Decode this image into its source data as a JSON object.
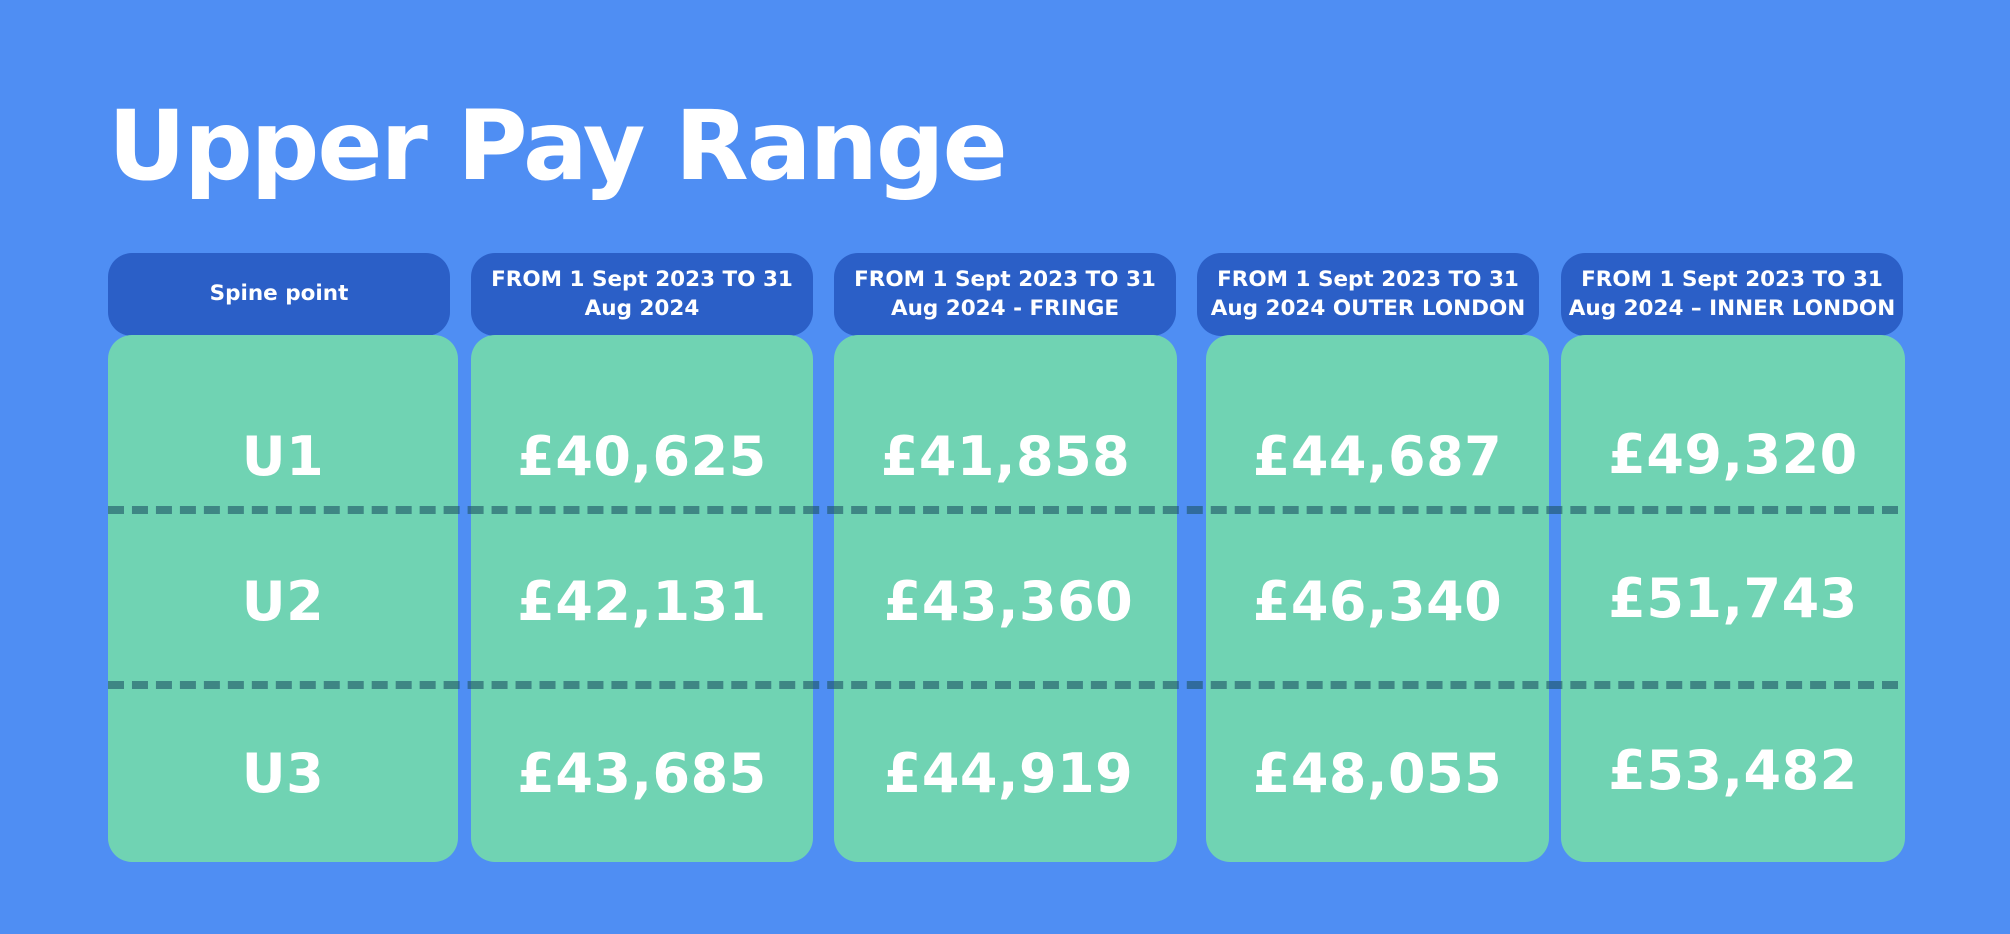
{
  "title": "Upper Pay Range",
  "headers": [
    "Spine point",
    "FROM 1 Sept 2023 TO 31 Aug 2024",
    "FROM 1 Sept 2023 TO 31 Aug 2024 - FRINGE",
    "FROM 1 Sept 2023 TO 31 Aug 2024 OUTER LONDON",
    "FROM 1 Sept 2023 TO 31 Aug 2024 – INNER LONDON"
  ],
  "rows": [
    [
      "U1",
      "£40,625",
      "£41,858",
      "£44,687",
      "£49,320"
    ],
    [
      "U2",
      "£42,131",
      "£43,360",
      "£46,340",
      "£51,743"
    ],
    [
      "U3",
      "£43,685",
      "£44,919",
      "£48,055",
      "£53,482"
    ]
  ],
  "colors": {
    "background": "#4f8ef3",
    "header": "#2b5fc7",
    "cell": "#70d3b3",
    "text": "#ffffff"
  }
}
